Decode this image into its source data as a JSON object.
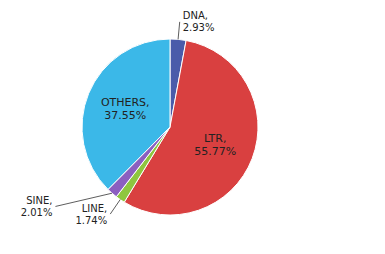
{
  "chart_data": {
    "type": "pie",
    "values": [
      2.93,
      55.77,
      1.74,
      2.01,
      37.55
    ],
    "value_labels": [
      "DNA,\n2.93%",
      "LTR,\n55.77%",
      "LINE,\n1.74%",
      "SINE,\n2.01%",
      "OTHERS,\n37.55%"
    ],
    "colors": [
      "#4A5BAA",
      "#D94040",
      "#8EC63F",
      "#8B5FC0",
      "#3BB8E8"
    ],
    "data_labels": true
  }
}
